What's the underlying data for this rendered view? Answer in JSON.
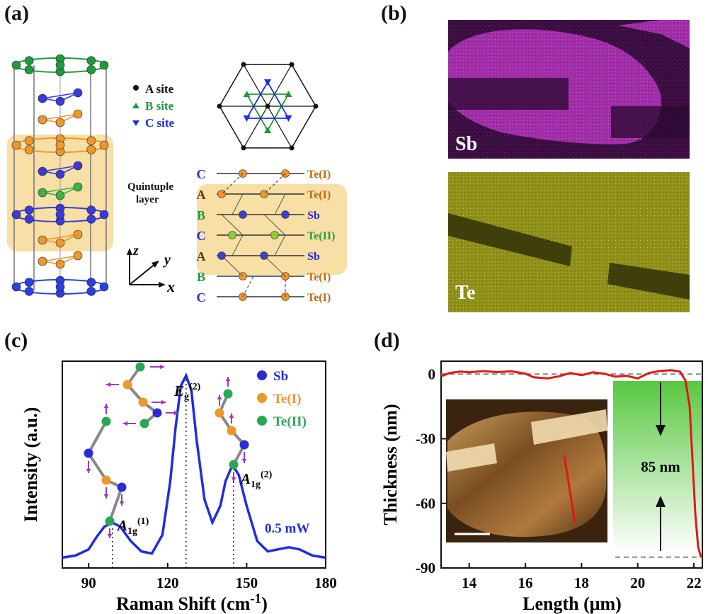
{
  "panels": {
    "a": "(a)",
    "b": "(b)",
    "c": "(c)",
    "d": "(d)"
  },
  "crystal": {
    "site_legend": [
      "A site",
      "B site",
      "C site"
    ],
    "quintuple_label_1": "Quintuple",
    "quintuple_label_2": "layer",
    "axes": {
      "z": "z",
      "y": "y",
      "x": "x"
    },
    "stack": [
      {
        "site": "C",
        "atom": "Te(I)"
      },
      {
        "site": "A",
        "atom": "Te(I)"
      },
      {
        "site": "B",
        "atom": "Sb"
      },
      {
        "site": "C",
        "atom": "Te(II)"
      },
      {
        "site": "A",
        "atom": "Sb"
      },
      {
        "site": "B",
        "atom": "Te(I)"
      },
      {
        "site": "C",
        "atom": "Te(I)"
      }
    ],
    "colors": {
      "sb": "#3a3ad8",
      "te1": "#f0962a",
      "te2": "#3cb34a",
      "top": "#1f9a3a",
      "bottom": "#2a3fe0",
      "highlight": "#f7dfa6"
    }
  },
  "eds": {
    "sb_label": "Sb",
    "te_label": "Te",
    "sb_color": "#c43ac8",
    "te_color": "#b2b21e"
  },
  "chart_data": [
    {
      "type": "line",
      "panel": "c",
      "xlabel": "Raman Shift (cm-1)",
      "xlabel_main": "Raman Shift (cm",
      "xlabel_sup": "-1",
      "xlabel_end": ")",
      "ylabel": "Intensity (a.u.)",
      "xlim": [
        80,
        180
      ],
      "xticks": [
        "90",
        "120",
        "150",
        "180"
      ],
      "xtick_values": [
        90,
        120,
        150,
        180
      ],
      "series_label": "0.5 mW",
      "peaks": [
        {
          "label": "A1g(1)",
          "x": 99
        },
        {
          "label": "Eg(2)",
          "x": 127
        },
        {
          "label": "A1g(2)",
          "x": 145
        }
      ],
      "legend": [
        "Sb",
        "Te(I)",
        "Te(II)"
      ],
      "x": [
        80,
        85,
        90,
        93,
        96,
        99,
        102,
        106,
        110,
        114,
        118,
        121,
        123,
        125,
        127,
        129,
        131,
        134,
        137,
        140,
        142,
        144,
        145,
        147,
        150,
        154,
        158,
        162,
        166,
        170,
        175,
        180
      ],
      "y": [
        0.05,
        0.06,
        0.09,
        0.15,
        0.2,
        0.22,
        0.2,
        0.13,
        0.08,
        0.07,
        0.16,
        0.42,
        0.68,
        0.88,
        0.93,
        0.86,
        0.62,
        0.33,
        0.22,
        0.3,
        0.42,
        0.48,
        0.49,
        0.45,
        0.3,
        0.13,
        0.08,
        0.09,
        0.1,
        0.09,
        0.06,
        0.05
      ],
      "line_color": "#1f2de0"
    },
    {
      "type": "line",
      "panel": "d",
      "xlabel": "Length (μm)",
      "ylabel": "Thickness (nm)",
      "xlim": [
        13,
        22.3
      ],
      "ylim": [
        -90,
        6
      ],
      "xticks": [
        "14",
        "16",
        "18",
        "20",
        "22"
      ],
      "xtick_values": [
        14,
        16,
        18,
        20,
        22
      ],
      "yticks": [
        "0",
        "-30",
        "-60",
        "-90"
      ],
      "ytick_values": [
        0,
        -30,
        -60,
        -90
      ],
      "annotation": "85 nm",
      "x": [
        13,
        13.3,
        13.7,
        14,
        14.5,
        15,
        15.5,
        16,
        16.3,
        16.8,
        17.2,
        17.6,
        18,
        18.4,
        18.8,
        19.2,
        19.6,
        20,
        20.4,
        20.8,
        21.2,
        21.5,
        21.7,
        21.85,
        21.95,
        22.05,
        22.15,
        22.25
      ],
      "y": [
        -1,
        0.5,
        1.2,
        0.8,
        1.4,
        0.9,
        1.3,
        0.2,
        -1.5,
        -2,
        -1,
        0.5,
        -0.5,
        0.8,
        0.2,
        -1.2,
        -0.8,
        -2,
        0.5,
        1.5,
        1.8,
        1.2,
        -3,
        -15,
        -40,
        -65,
        -80,
        -85
      ],
      "line_color": "#e01818"
    }
  ]
}
